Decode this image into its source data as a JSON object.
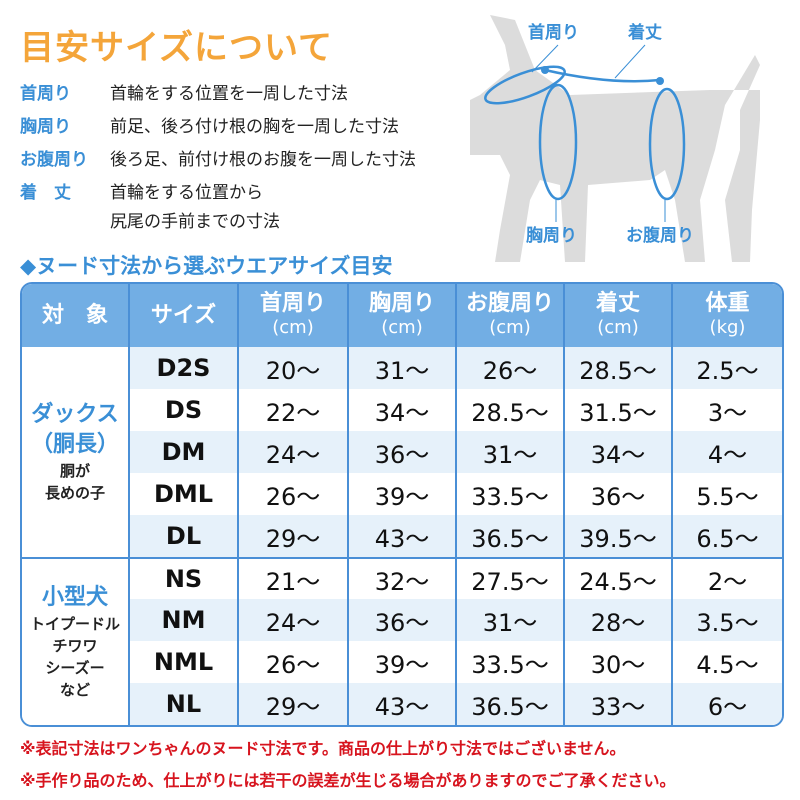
{
  "title": "目安サイズについて",
  "definitions": [
    {
      "term": "首周り",
      "desc": "首輪をする位置を一周した寸法"
    },
    {
      "term": "胸周り",
      "desc": "前足、後ろ付け根の胸を一周した寸法"
    },
    {
      "term": "お腹周り",
      "desc": "後ろ足、前付け根のお腹を一周した寸法"
    },
    {
      "term": "着　丈",
      "desc": "首輪をする位置から",
      "desc2": "尻尾の手前までの寸法"
    }
  ],
  "diagram": {
    "neck": "首周り",
    "length": "着丈",
    "chest": "胸周り",
    "belly": "お腹周り"
  },
  "subheading": "◆ヌード寸法から選ぶウエアサイズ目安",
  "table": {
    "headers": [
      {
        "label": "対　象"
      },
      {
        "label": "サイズ"
      },
      {
        "label": "首周り",
        "unit": "(cm)"
      },
      {
        "label": "胸周り",
        "unit": "(cm)"
      },
      {
        "label": "お腹周り",
        "unit": "(cm)"
      },
      {
        "label": "着丈",
        "unit": "(cm)"
      },
      {
        "label": "体重",
        "unit": "(kg)"
      }
    ],
    "groups": [
      {
        "name": "ダックス",
        "name2": "（胴長）",
        "sub": "胴が",
        "sub2": "長めの子",
        "rows": [
          [
            "D2S",
            "20〜",
            "31〜",
            "26〜",
            "28.5〜",
            "2.5〜"
          ],
          [
            "DS",
            "22〜",
            "34〜",
            "28.5〜",
            "31.5〜",
            "3〜"
          ],
          [
            "DM",
            "24〜",
            "36〜",
            "31〜",
            "34〜",
            "4〜"
          ],
          [
            "DML",
            "26〜",
            "39〜",
            "33.5〜",
            "36〜",
            "5.5〜"
          ],
          [
            "DL",
            "29〜",
            "43〜",
            "36.5〜",
            "39.5〜",
            "6.5〜"
          ]
        ]
      },
      {
        "name": "小型犬",
        "sub": "トイプードル",
        "sub2": "チワワ",
        "sub3": "シーズー",
        "sub4": "など",
        "rows": [
          [
            "NS",
            "21〜",
            "32〜",
            "27.5〜",
            "24.5〜",
            "2〜"
          ],
          [
            "NM",
            "24〜",
            "36〜",
            "31〜",
            "28〜",
            "3.5〜"
          ],
          [
            "NML",
            "26〜",
            "39〜",
            "33.5〜",
            "30〜",
            "4.5〜"
          ],
          [
            "NL",
            "29〜",
            "43〜",
            "36.5〜",
            "33〜",
            "6〜"
          ]
        ]
      }
    ]
  },
  "notes": [
    "※表記寸法はワンちゃんのヌード寸法です。商品の仕上がり寸法ではございません。",
    "※手作り品のため、仕上がりには若干の誤差が生じる場合がありますのでご了承ください。"
  ],
  "colors": {
    "title": "#f4a53a",
    "accent": "#3a8fd6",
    "header": "#72aee4",
    "row_alt": "#e6f1fa",
    "note": "#d7141e",
    "dog": "#dcdcdc"
  }
}
